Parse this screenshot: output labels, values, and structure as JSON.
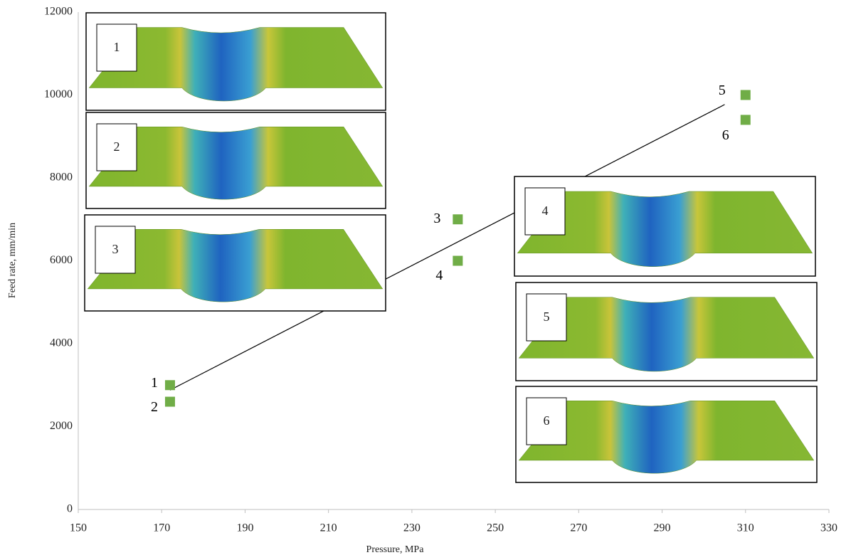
{
  "chart_data": {
    "type": "scatter",
    "x_label": "Pressure, MPa",
    "y_label": "Feed rate, mm/min",
    "x": [
      172,
      172,
      241,
      241,
      310,
      310
    ],
    "series": [
      {
        "color": "#70ad47",
        "values": [
          3000,
          2600,
          7000,
          6000,
          10000,
          9400
        ],
        "point_labels": [
          "1",
          "2",
          "3",
          "4",
          "5",
          "6"
        ]
      }
    ],
    "xlim": [
      150,
      330
    ],
    "xticks": [
      150,
      170,
      190,
      210,
      230,
      250,
      270,
      290,
      310,
      330
    ],
    "ylim": [
      0,
      12000
    ],
    "yticks": [
      0,
      2000,
      4000,
      6000,
      8000,
      10000,
      12000
    ],
    "grid": false,
    "trendline": {
      "color": "#000000",
      "x": [
        172,
        305
      ],
      "y": [
        2880,
        9770
      ]
    },
    "insets": [
      {
        "label": "1"
      },
      {
        "label": "2"
      },
      {
        "label": "3"
      },
      {
        "label": "4"
      },
      {
        "label": "5"
      },
      {
        "label": "6"
      }
    ]
  }
}
